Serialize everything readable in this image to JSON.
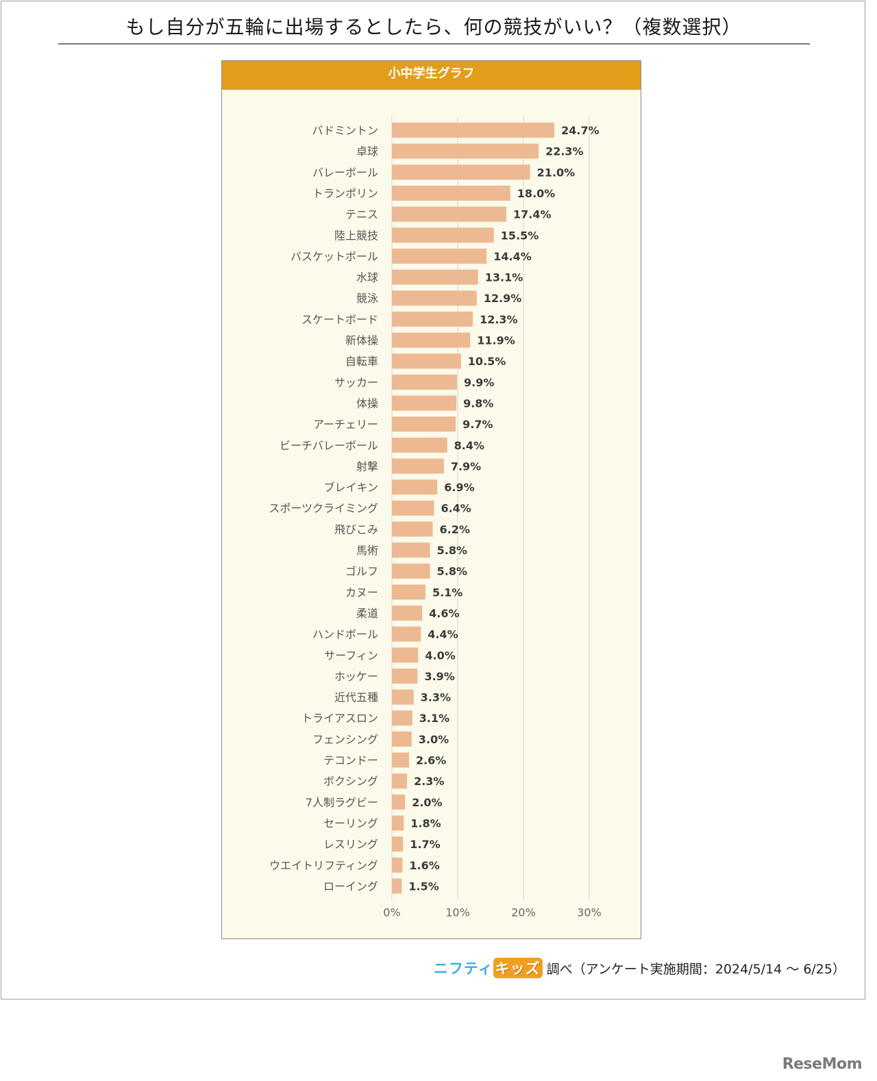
{
  "title": "もし自分が五輪に出場するとしたら、何の競技がいい？（複数選択）",
  "panel_title": "小中学生グラフ",
  "source": {
    "logo_part1": "ニフティ",
    "logo_part2": "キッズ",
    "text": "調べ（アンケート実施期間：2024/5/14 ～ 6/25）"
  },
  "watermark": "ReseMom",
  "colors": {
    "bar": "#edb992",
    "header": "#e19e1b",
    "panel_bg": "#fcfaea",
    "grid": "#d6d6d6",
    "value_text": "#3a3a3a",
    "category_text": "#555555"
  },
  "chart_data": {
    "type": "bar",
    "orientation": "horizontal",
    "categories": [
      "バドミントン",
      "卓球",
      "バレーボール",
      "トランポリン",
      "テニス",
      "陸上競技",
      "バスケットボール",
      "水球",
      "競泳",
      "スケートボード",
      "新体操",
      "自転車",
      "サッカー",
      "体操",
      "アーチェリー",
      "ビーチバレーボール",
      "射撃",
      "ブレイキン",
      "スポーツクライミング",
      "飛びこみ",
      "馬術",
      "ゴルフ",
      "カヌー",
      "柔道",
      "ハンドボール",
      "サーフィン",
      "ホッケー",
      "近代五種",
      "トライアスロン",
      "フェンシング",
      "テコンドー",
      "ボクシング",
      "7人制ラグビー",
      "セーリング",
      "レスリング",
      "ウエイトリフティング",
      "ローイング"
    ],
    "values": [
      24.7,
      22.3,
      21.0,
      18.0,
      17.4,
      15.5,
      14.4,
      13.1,
      12.9,
      12.3,
      11.9,
      10.5,
      9.9,
      9.8,
      9.7,
      8.4,
      7.9,
      6.9,
      6.4,
      6.2,
      5.8,
      5.8,
      5.1,
      4.6,
      4.4,
      4.0,
      3.9,
      3.3,
      3.1,
      3.0,
      2.6,
      2.3,
      2.0,
      1.8,
      1.7,
      1.6,
      1.5
    ],
    "value_labels": [
      "24.7%",
      "22.3%",
      "21.0%",
      "18.0%",
      "17.4%",
      "15.5%",
      "14.4%",
      "13.1%",
      "12.9%",
      "12.3%",
      "11.9%",
      "10.5%",
      "9.9%",
      "9.8%",
      "9.7%",
      "8.4%",
      "7.9%",
      "6.9%",
      "6.4%",
      "6.2%",
      "5.8%",
      "5.8%",
      "5.1%",
      "4.6%",
      "4.4%",
      "4.0%",
      "3.9%",
      "3.3%",
      "3.1%",
      "3.0%",
      "2.6%",
      "2.3%",
      "2.0%",
      "1.8%",
      "1.7%",
      "1.6%",
      "1.5%"
    ],
    "xlim": [
      0,
      30
    ],
    "xticks": [
      0,
      10,
      20,
      30
    ],
    "xtick_labels": [
      "0%",
      "10%",
      "20%",
      "30%"
    ],
    "grid": true
  }
}
